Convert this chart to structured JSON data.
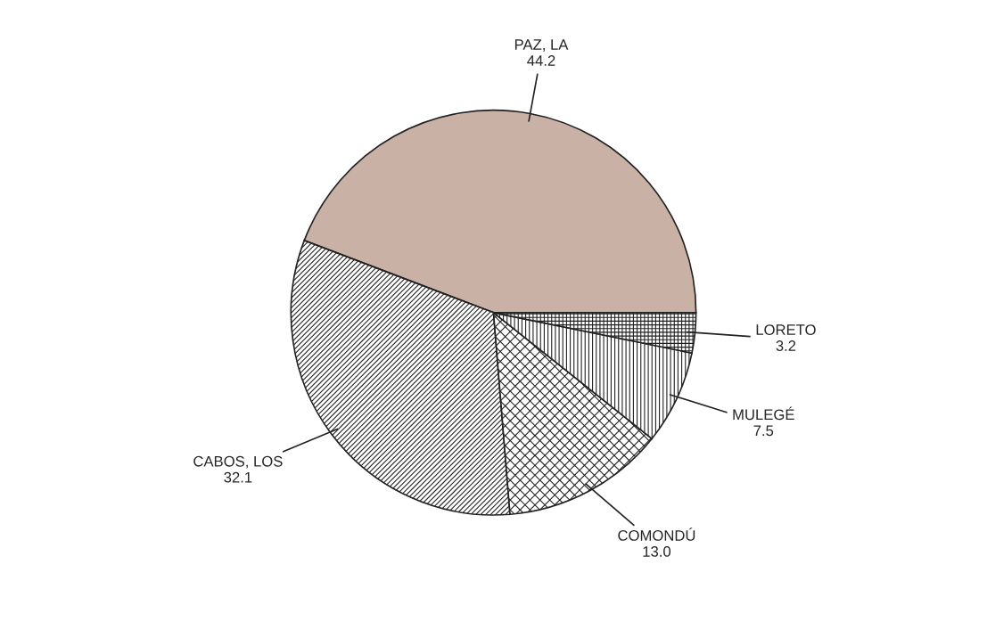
{
  "chart_data": {
    "type": "pie",
    "categories": [
      "PAZ, LA",
      "CABOS, LOS",
      "COMONDÚ",
      "MULEGÉ",
      "LORETO"
    ],
    "values": [
      44.2,
      32.1,
      13.0,
      7.5,
      3.2
    ],
    "colors": [
      "#c9b1a5",
      "#ffffff",
      "#ffffff",
      "#ffffff",
      "#ffffff"
    ],
    "value_labels": [
      "44.2",
      "32.1",
      "13.0",
      "7.5",
      "3.2"
    ],
    "legend": false
  }
}
